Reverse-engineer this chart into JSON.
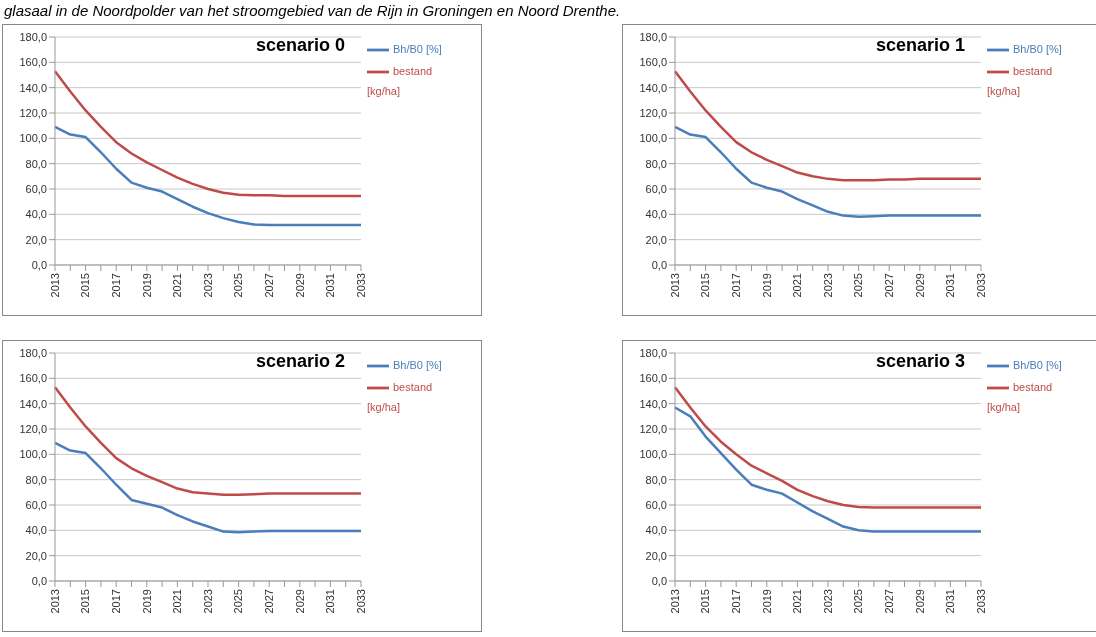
{
  "chart_data": [
    {
      "type": "line",
      "title": "scenario 0",
      "annotations": [
        "glasaal in de Noordpolder van het stroomgebied van de Rijn in Groningen en Noord Drenthe."
      ],
      "categories": [
        "2013",
        null,
        "2015",
        null,
        "2017",
        null,
        "2019",
        null,
        "2021",
        null,
        "2023",
        null,
        "2025",
        null,
        "2027",
        null,
        "2029",
        null,
        "2031",
        null,
        "2033"
      ],
      "series": [
        {
          "name": "bestand [kg/ha]",
          "color": "#be4b48",
          "values": [
            153,
            137,
            122,
            109,
            97,
            88,
            81,
            75,
            69,
            64,
            60,
            57,
            55.5,
            55,
            55,
            54.5,
            54.5,
            54.5,
            54.5,
            54.5,
            54.5
          ]
        },
        {
          "name": "Bh/B0 [%]",
          "color": "#4a7ebb",
          "values": [
            109,
            103,
            101,
            89,
            76,
            65,
            61,
            58,
            52,
            46,
            41,
            37,
            34,
            32,
            31.5,
            31.5,
            31.5,
            31.5,
            31.5,
            31.5,
            31.5
          ]
        }
      ],
      "ylim": [
        0,
        180
      ],
      "yticks": [
        {
          "value": 0,
          "label": "0,0"
        },
        {
          "value": 20,
          "label": "20,0"
        },
        {
          "value": 40,
          "label": "40,0"
        },
        {
          "value": 60,
          "label": "60,0"
        },
        {
          "value": 80,
          "label": "80,0"
        },
        {
          "value": 100,
          "label": "100,0"
        },
        {
          "value": 120,
          "label": "120,0"
        },
        {
          "value": 140,
          "label": "140,0"
        },
        {
          "value": 160,
          "label": "160,0"
        },
        {
          "value": 180,
          "label": "180,0"
        }
      ],
      "grid": "y",
      "legend": "right",
      "marker": "none",
      "line_style": "solid"
    },
    {
      "type": "line",
      "title": "scenario 1",
      "categories": [
        "2013",
        null,
        "2015",
        null,
        "2017",
        null,
        "2019",
        null,
        "2021",
        null,
        "2023",
        null,
        "2025",
        null,
        "2027",
        null,
        "2029",
        null,
        "2031",
        null,
        "2033"
      ],
      "series": [
        {
          "name": "bestand [kg/ha]",
          "color": "#be4b48",
          "values": [
            153,
            137,
            122,
            109,
            97,
            89,
            83,
            78,
            73,
            70,
            68,
            67,
            67,
            67,
            67.5,
            67.5,
            68,
            68,
            68,
            68,
            68
          ]
        },
        {
          "name": "Bh/B0 [%]",
          "color": "#4a7ebb",
          "values": [
            109,
            103,
            101,
            89,
            76,
            65,
            61,
            58,
            52,
            47,
            42,
            39,
            38,
            38.5,
            39,
            39,
            39,
            39,
            39,
            39,
            39
          ]
        }
      ],
      "ylim": [
        0,
        180
      ],
      "yticks": [
        {
          "value": 0,
          "label": "0,0"
        },
        {
          "value": 20,
          "label": "20,0"
        },
        {
          "value": 40,
          "label": "40,0"
        },
        {
          "value": 60,
          "label": "60,0"
        },
        {
          "value": 80,
          "label": "80,0"
        },
        {
          "value": 100,
          "label": "100,0"
        },
        {
          "value": 120,
          "label": "120,0"
        },
        {
          "value": 140,
          "label": "140,0"
        },
        {
          "value": 160,
          "label": "160,0"
        },
        {
          "value": 180,
          "label": "180,0"
        }
      ],
      "grid": "y",
      "legend": "right",
      "marker": "none",
      "line_style": "solid"
    },
    {
      "type": "line",
      "title": "scenario 2",
      "categories": [
        "2013",
        null,
        "2015",
        null,
        "2017",
        null,
        "2019",
        null,
        "2021",
        null,
        "2023",
        null,
        "2025",
        null,
        "2027",
        null,
        "2029",
        null,
        "2031",
        null,
        "2033"
      ],
      "series": [
        {
          "name": "bestand [kg/ha]",
          "color": "#be4b48",
          "values": [
            153,
            137,
            122,
            109,
            97,
            89,
            83,
            78,
            73,
            70,
            69,
            68,
            68,
            68.5,
            69,
            69,
            69,
            69,
            69,
            69,
            69
          ]
        },
        {
          "name": "Bh/B0 [%]",
          "color": "#4a7ebb",
          "values": [
            109,
            103,
            101,
            89,
            76,
            64,
            61,
            58,
            52,
            47,
            43,
            39,
            38.5,
            39,
            39.5,
            39.5,
            39.5,
            39.5,
            39.5,
            39.5,
            39.5
          ]
        }
      ],
      "ylim": [
        0,
        180
      ],
      "yticks": [
        {
          "value": 0,
          "label": "0,0"
        },
        {
          "value": 20,
          "label": "20,0"
        },
        {
          "value": 40,
          "label": "40,0"
        },
        {
          "value": 60,
          "label": "60,0"
        },
        {
          "value": 80,
          "label": "80,0"
        },
        {
          "value": 100,
          "label": "100,0"
        },
        {
          "value": 120,
          "label": "120,0"
        },
        {
          "value": 140,
          "label": "140,0"
        },
        {
          "value": 160,
          "label": "160,0"
        },
        {
          "value": 180,
          "label": "180,0"
        }
      ],
      "grid": "y",
      "legend": "right",
      "marker": "none",
      "line_style": "solid"
    },
    {
      "type": "line",
      "title": "scenario 3",
      "categories": [
        "2013",
        null,
        "2015",
        null,
        "2017",
        null,
        "2019",
        null,
        "2021",
        null,
        "2023",
        null,
        "2025",
        null,
        "2027",
        null,
        "2029",
        null,
        "2031",
        null,
        "2033"
      ],
      "series": [
        {
          "name": "bestand [kg/ha]",
          "color": "#be4b48",
          "values": [
            153,
            137,
            122,
            110,
            100,
            91,
            85,
            79,
            72,
            67,
            63,
            60,
            58.5,
            58,
            58,
            58,
            58,
            58,
            58,
            58,
            58
          ]
        },
        {
          "name": "Bh/B0 [%]",
          "color": "#4a7ebb",
          "values": [
            137,
            130,
            114,
            101,
            88,
            76,
            72,
            69,
            62,
            55,
            49,
            43,
            40,
            39,
            39,
            39,
            39,
            39,
            39,
            39,
            39
          ]
        }
      ],
      "ylim": [
        0,
        180
      ],
      "yticks": [
        {
          "value": 0,
          "label": "0,0"
        },
        {
          "value": 20,
          "label": "20,0"
        },
        {
          "value": 40,
          "label": "40,0"
        },
        {
          "value": 60,
          "label": "60,0"
        },
        {
          "value": 80,
          "label": "80,0"
        },
        {
          "value": 100,
          "label": "100,0"
        },
        {
          "value": 120,
          "label": "120,0"
        },
        {
          "value": 140,
          "label": "140,0"
        },
        {
          "value": 160,
          "label": "160,0"
        },
        {
          "value": 180,
          "label": "180,0"
        }
      ],
      "grid": "y",
      "legend": "right",
      "marker": "none",
      "line_style": "solid"
    }
  ]
}
